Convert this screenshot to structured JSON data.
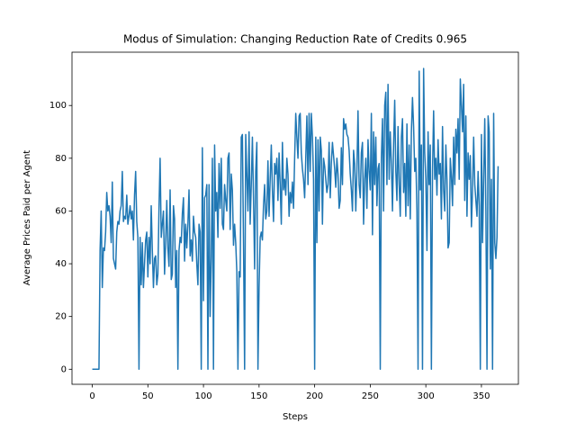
{
  "chart_data": {
    "type": "line",
    "title": "Modus of Simulation: Changing Reduction Rate of Credits 0.965",
    "xlabel": "Steps",
    "ylabel": "Average Prices Paid per Agent",
    "color": "#1f77b4",
    "xlim": [
      -18.25,
      383.25
    ],
    "ylim": [
      -5.7,
      120.2
    ],
    "xticks": [
      0,
      50,
      100,
      150,
      200,
      250,
      300,
      350
    ],
    "yticks": [
      0,
      20,
      40,
      60,
      80,
      100
    ],
    "x": [
      0,
      1,
      2,
      3,
      4,
      5,
      6,
      7,
      8,
      9,
      10,
      11,
      12,
      13,
      14,
      15,
      16,
      17,
      18,
      19,
      20,
      21,
      22,
      23,
      24,
      25,
      26,
      27,
      28,
      29,
      30,
      31,
      32,
      33,
      34,
      35,
      36,
      37,
      38,
      39,
      40,
      41,
      42,
      43,
      44,
      45,
      46,
      47,
      48,
      49,
      50,
      51,
      52,
      53,
      54,
      55,
      56,
      57,
      58,
      59,
      60,
      61,
      62,
      63,
      64,
      65,
      66,
      67,
      68,
      69,
      70,
      71,
      72,
      73,
      74,
      75,
      76,
      77,
      78,
      79,
      80,
      81,
      82,
      83,
      84,
      85,
      86,
      87,
      88,
      89,
      90,
      91,
      92,
      93,
      94,
      95,
      96,
      97,
      98,
      99,
      100,
      101,
      102,
      103,
      104,
      105,
      106,
      107,
      108,
      109,
      110,
      111,
      112,
      113,
      114,
      115,
      116,
      117,
      118,
      119,
      120,
      121,
      122,
      123,
      124,
      125,
      126,
      127,
      128,
      129,
      130,
      131,
      132,
      133,
      134,
      135,
      136,
      137,
      138,
      139,
      140,
      141,
      142,
      143,
      144,
      145,
      146,
      147,
      148,
      149,
      150,
      151,
      152,
      153,
      154,
      155,
      156,
      157,
      158,
      159,
      160,
      161,
      162,
      163,
      164,
      165,
      166,
      167,
      168,
      169,
      170,
      171,
      172,
      173,
      174,
      175,
      176,
      177,
      178,
      179,
      180,
      181,
      182,
      183,
      184,
      185,
      186,
      187,
      188,
      189,
      190,
      191,
      192,
      193,
      194,
      195,
      196,
      197,
      198,
      199,
      200,
      201,
      202,
      203,
      204,
      205,
      206,
      207,
      208,
      209,
      210,
      211,
      212,
      213,
      214,
      215,
      216,
      217,
      218,
      219,
      220,
      221,
      222,
      223,
      224,
      225,
      226,
      227,
      228,
      229,
      230,
      231,
      232,
      233,
      234,
      235,
      236,
      237,
      238,
      239,
      240,
      241,
      242,
      243,
      244,
      245,
      246,
      247,
      248,
      249,
      250,
      251,
      252,
      253,
      254,
      255,
      256,
      257,
      258,
      259,
      260,
      261,
      262,
      263,
      264,
      265,
      266,
      267,
      268,
      269,
      270,
      271,
      272,
      273,
      274,
      275,
      276,
      277,
      278,
      279,
      280,
      281,
      282,
      283,
      284,
      285,
      286,
      287,
      288,
      289,
      290,
      291,
      292,
      293,
      294,
      295,
      296,
      297,
      298,
      299,
      300,
      301,
      302,
      303,
      304,
      305,
      306,
      307,
      308,
      309,
      310,
      311,
      312,
      313,
      314,
      315,
      316,
      317,
      318,
      319,
      320,
      321,
      322,
      323,
      324,
      325,
      326,
      327,
      328,
      329,
      330,
      331,
      332,
      333,
      334,
      335,
      336,
      337,
      338,
      339,
      340,
      341,
      342,
      343,
      344,
      345,
      346,
      347,
      348,
      349,
      350,
      351,
      352,
      353,
      354,
      355,
      356,
      357,
      358,
      359,
      360,
      361,
      362,
      363,
      364,
      365
    ],
    "values": [
      0,
      0,
      0,
      0,
      0,
      0,
      0,
      45,
      60,
      31,
      46,
      45,
      52,
      67,
      60,
      62,
      58,
      48,
      71,
      42,
      40,
      38,
      52,
      56,
      55,
      60,
      62,
      75,
      56,
      58,
      57,
      66,
      55,
      58,
      62,
      57,
      60,
      49,
      66,
      75,
      56,
      50,
      0,
      50,
      32,
      48,
      31,
      40,
      49,
      52,
      35,
      50,
      40,
      62,
      45,
      31,
      42,
      43,
      32,
      36,
      61,
      80,
      50,
      55,
      60,
      36,
      48,
      64,
      46,
      39,
      68,
      34,
      36,
      62,
      57,
      31,
      45,
      0,
      45,
      50,
      48,
      59,
      65,
      41,
      55,
      46,
      55,
      68,
      43,
      49,
      41,
      58,
      52,
      50,
      40,
      32,
      55,
      52,
      0,
      84,
      26,
      65,
      66,
      70,
      0,
      70,
      20,
      42,
      80,
      0,
      85,
      60,
      67,
      50,
      78,
      61,
      80,
      55,
      53,
      70,
      64,
      60,
      80,
      82,
      53,
      74,
      68,
      47,
      55,
      48,
      37,
      0,
      37,
      35,
      88,
      89,
      48,
      0,
      89,
      74,
      60,
      90,
      55,
      70,
      88,
      65,
      38,
      75,
      86,
      0,
      31,
      50,
      52,
      49,
      62,
      70,
      57,
      60,
      79,
      58,
      72,
      85,
      68,
      56,
      78,
      74,
      80,
      64,
      82,
      70,
      55,
      86,
      68,
      72,
      66,
      80,
      74,
      58,
      67,
      63,
      71,
      61,
      80,
      97,
      88,
      80,
      96,
      97,
      82,
      76,
      72,
      65,
      80,
      96,
      70,
      97,
      75,
      97,
      88,
      72,
      0,
      88,
      48,
      87,
      60,
      88,
      83,
      55,
      80,
      77,
      72,
      67,
      70,
      86,
      65,
      78,
      86,
      81,
      76,
      69,
      80,
      74,
      61,
      64,
      84,
      70,
      95,
      91,
      93,
      89,
      88,
      83,
      74,
      68,
      60,
      83,
      78,
      60,
      75,
      98,
      70,
      65,
      82,
      86,
      55,
      72,
      80,
      61,
      87,
      75,
      68,
      97,
      51,
      90,
      70,
      88,
      62,
      76,
      78,
      0,
      80,
      95,
      60,
      100,
      105,
      70,
      108,
      72,
      90,
      78,
      60,
      85,
      102,
      75,
      64,
      92,
      70,
      58,
      88,
      95,
      67,
      78,
      58,
      93,
      62,
      85,
      57,
      90,
      103,
      92,
      75,
      80,
      60,
      0,
      113,
      68,
      85,
      0,
      114,
      82,
      72,
      45,
      90,
      70,
      85,
      0,
      75,
      98,
      72,
      80,
      66,
      87,
      74,
      78,
      57,
      92,
      68,
      60,
      85,
      72,
      46,
      48,
      80,
      73,
      62,
      88,
      70,
      91,
      82,
      95,
      72,
      110,
      100,
      90,
      108,
      64,
      96,
      58,
      82,
      72,
      81,
      54,
      68,
      88,
      70,
      64,
      58,
      75,
      62,
      0,
      89,
      48,
      72,
      95,
      60,
      0,
      96,
      90,
      38,
      72,
      0,
      97,
      48,
      42,
      50,
      77
    ]
  }
}
